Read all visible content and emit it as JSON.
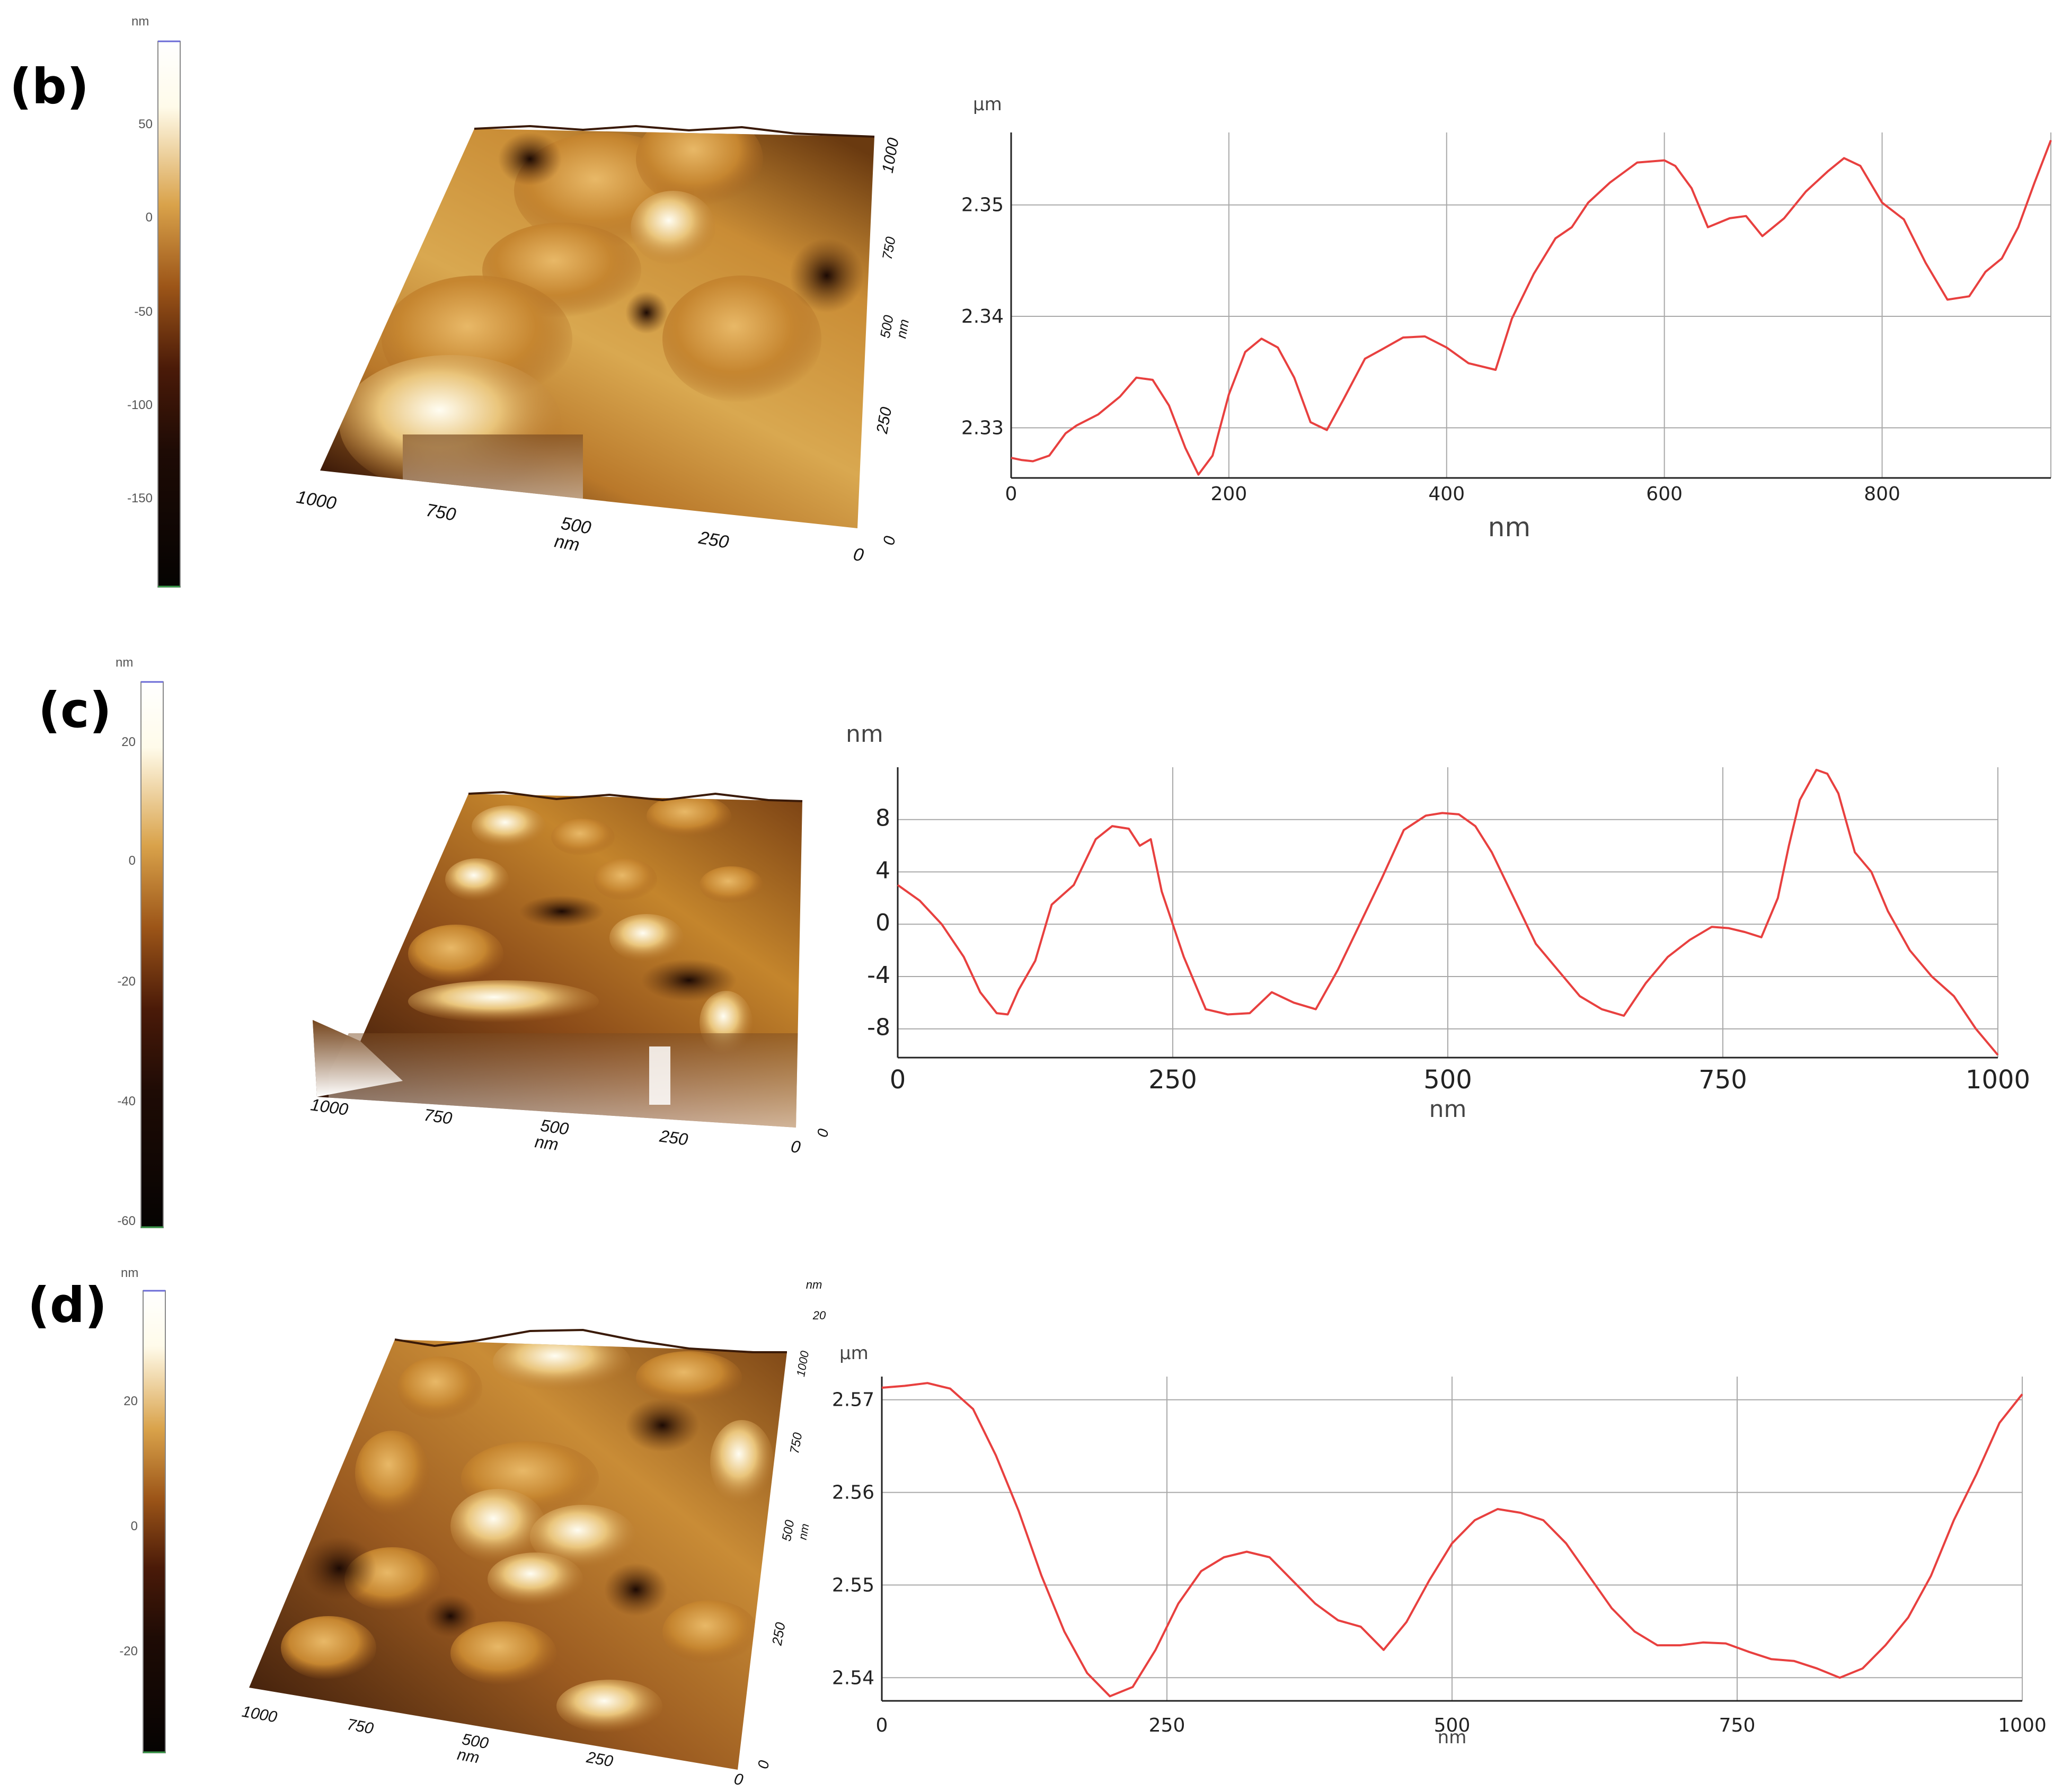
{
  "colors": {
    "profile_line": "#e8403f",
    "grid": "#a9a9a9",
    "axis": "#222222",
    "afm_light": "#fffdf2",
    "afm_mid": "#c8862a",
    "afm_dark": "#1c0c06"
  },
  "panels": [
    {
      "label": "(b)",
      "colorbar": {
        "unit": "nm",
        "ticks": [
          "50",
          "0",
          "-50",
          "-100",
          "-150"
        ]
      },
      "surface": {
        "x_ticks": [
          "1000",
          "750",
          "500",
          "250",
          "0"
        ],
        "x_unit": "nm",
        "y_ticks": [
          "1000",
          "750",
          "500",
          "250",
          "0"
        ],
        "y_unit": "nm"
      },
      "profile": {
        "y_unit": "µm",
        "x_unit": "nm",
        "x_ticks": [
          "0",
          "200",
          "400",
          "600",
          "800"
        ],
        "y_ticks": [
          "2.35",
          "2.34",
          "2.33"
        ]
      }
    },
    {
      "label": "(c)",
      "colorbar": {
        "unit": "nm",
        "ticks": [
          "20",
          "0",
          "-20",
          "-40",
          "-60"
        ]
      },
      "surface": {
        "x_ticks": [
          "1000",
          "750",
          "500",
          "250",
          "0"
        ],
        "x_unit": "nm",
        "y_ticks": [
          "0"
        ],
        "y_unit": ""
      },
      "profile": {
        "y_unit": "nm",
        "x_unit": "nm",
        "x_ticks": [
          "0",
          "250",
          "500",
          "750",
          "1000"
        ],
        "y_ticks": [
          "8",
          "4",
          "0",
          "-4",
          "-8"
        ]
      }
    },
    {
      "label": "(d)",
      "colorbar": {
        "unit": "nm",
        "ticks": [
          "20",
          "0",
          "-20"
        ]
      },
      "surface": {
        "x_ticks": [
          "1000",
          "750",
          "500",
          "250",
          "0"
        ],
        "x_unit": "nm",
        "y_ticks": [
          "1000",
          "750",
          "500",
          "250",
          "0"
        ],
        "y_unit": "nm",
        "z_unit": "nm",
        "z_tick": "20"
      },
      "profile": {
        "y_unit": "µm",
        "x_unit": "nm",
        "x_ticks": [
          "0",
          "250",
          "500",
          "750",
          "1000"
        ],
        "y_ticks": [
          "2.57",
          "2.56",
          "2.55",
          "2.54"
        ]
      }
    }
  ],
  "chart_data": [
    {
      "type": "line",
      "panel": "(b)",
      "xlabel": "nm",
      "ylabel": "µm",
      "xlim": [
        0,
        955
      ],
      "ylim": [
        2.3255,
        2.3565
      ],
      "grid": true,
      "series": [
        {
          "x": [
            0,
            10,
            20,
            35,
            50,
            60,
            80,
            100,
            115,
            130,
            145,
            160,
            172,
            185,
            200,
            215,
            230,
            245,
            260,
            275,
            290,
            305,
            325,
            340,
            360,
            380,
            400,
            420,
            445,
            460,
            480,
            500,
            515,
            530,
            550,
            575,
            600,
            610,
            625,
            640,
            660,
            675,
            690,
            710,
            730,
            750,
            765,
            780,
            800,
            820,
            840,
            860,
            880,
            895,
            910,
            925,
            940,
            955
          ],
          "y": [
            2.3273,
            2.3271,
            2.327,
            2.3275,
            2.3295,
            2.3302,
            2.3312,
            2.3328,
            2.3345,
            2.3343,
            2.332,
            2.3282,
            2.3258,
            2.3275,
            2.333,
            2.3368,
            2.338,
            2.3372,
            2.3345,
            2.3305,
            2.3298,
            2.3325,
            2.3362,
            2.337,
            2.3381,
            2.3382,
            2.3372,
            2.3358,
            2.3352,
            2.3398,
            2.3438,
            2.347,
            2.348,
            2.3502,
            2.352,
            2.3538,
            2.354,
            2.3535,
            2.3515,
            2.348,
            2.3488,
            2.349,
            2.3472,
            2.3488,
            2.3512,
            2.353,
            2.3542,
            2.3535,
            2.3502,
            2.3487,
            2.3448,
            2.3415,
            2.3418,
            2.344,
            2.3452,
            2.348,
            2.352,
            2.3558
          ]
        }
      ]
    },
    {
      "type": "line",
      "panel": "(c)",
      "xlabel": "nm",
      "ylabel": "nm",
      "xlim": [
        0,
        1000
      ],
      "ylim": [
        -10.2,
        12.0
      ],
      "grid": true,
      "series": [
        {
          "x": [
            0,
            20,
            40,
            60,
            75,
            90,
            100,
            110,
            125,
            140,
            160,
            180,
            195,
            210,
            220,
            230,
            240,
            260,
            280,
            300,
            320,
            340,
            360,
            380,
            400,
            420,
            440,
            460,
            480,
            495,
            510,
            525,
            540,
            560,
            580,
            600,
            620,
            640,
            660,
            680,
            700,
            720,
            740,
            755,
            770,
            785,
            800,
            810,
            820,
            835,
            845,
            855,
            870,
            885,
            900,
            920,
            940,
            960,
            980,
            1000
          ],
          "y": [
            3.0,
            1.8,
            0.0,
            -2.5,
            -5.2,
            -6.8,
            -6.9,
            -5.0,
            -2.8,
            1.5,
            3.0,
            6.5,
            7.5,
            7.3,
            6.0,
            6.5,
            2.5,
            -2.5,
            -6.5,
            -6.9,
            -6.8,
            -5.2,
            -6.0,
            -6.5,
            -3.5,
            0.0,
            3.5,
            7.2,
            8.3,
            8.5,
            8.4,
            7.5,
            5.5,
            2.0,
            -1.5,
            -3.5,
            -5.5,
            -6.5,
            -7.0,
            -4.5,
            -2.5,
            -1.2,
            -0.2,
            -0.3,
            -0.6,
            -1.0,
            2.0,
            6.0,
            9.5,
            11.8,
            11.5,
            10.0,
            5.5,
            4.0,
            1.0,
            -2.0,
            -4.0,
            -5.5,
            -8.0,
            -10.0
          ]
        }
      ]
    },
    {
      "type": "line",
      "panel": "(d)",
      "xlabel": "nm",
      "ylabel": "µm",
      "xlim": [
        0,
        1000
      ],
      "ylim": [
        2.5375,
        2.5725
      ],
      "grid": true,
      "series": [
        {
          "x": [
            0,
            20,
            40,
            60,
            80,
            100,
            120,
            140,
            160,
            180,
            200,
            220,
            240,
            260,
            280,
            300,
            320,
            340,
            360,
            380,
            400,
            420,
            440,
            460,
            480,
            500,
            520,
            540,
            560,
            580,
            600,
            620,
            640,
            660,
            680,
            700,
            720,
            740,
            760,
            780,
            800,
            820,
            840,
            860,
            880,
            900,
            920,
            940,
            960,
            980,
            1000
          ],
          "y": [
            2.5713,
            2.5715,
            2.5718,
            2.5712,
            2.569,
            2.564,
            2.558,
            2.551,
            2.545,
            2.5405,
            2.538,
            2.539,
            2.543,
            2.548,
            2.5515,
            2.553,
            2.5536,
            2.553,
            2.5505,
            2.548,
            2.5462,
            2.5455,
            2.543,
            2.546,
            2.5505,
            2.5545,
            2.557,
            2.5582,
            2.5578,
            2.557,
            2.5545,
            2.551,
            2.5475,
            2.545,
            2.5435,
            2.5435,
            2.5438,
            2.5437,
            2.5428,
            2.542,
            2.5418,
            2.541,
            2.54,
            2.541,
            2.5435,
            2.5465,
            2.551,
            2.557,
            2.562,
            2.5675,
            2.5706
          ]
        }
      ]
    }
  ]
}
